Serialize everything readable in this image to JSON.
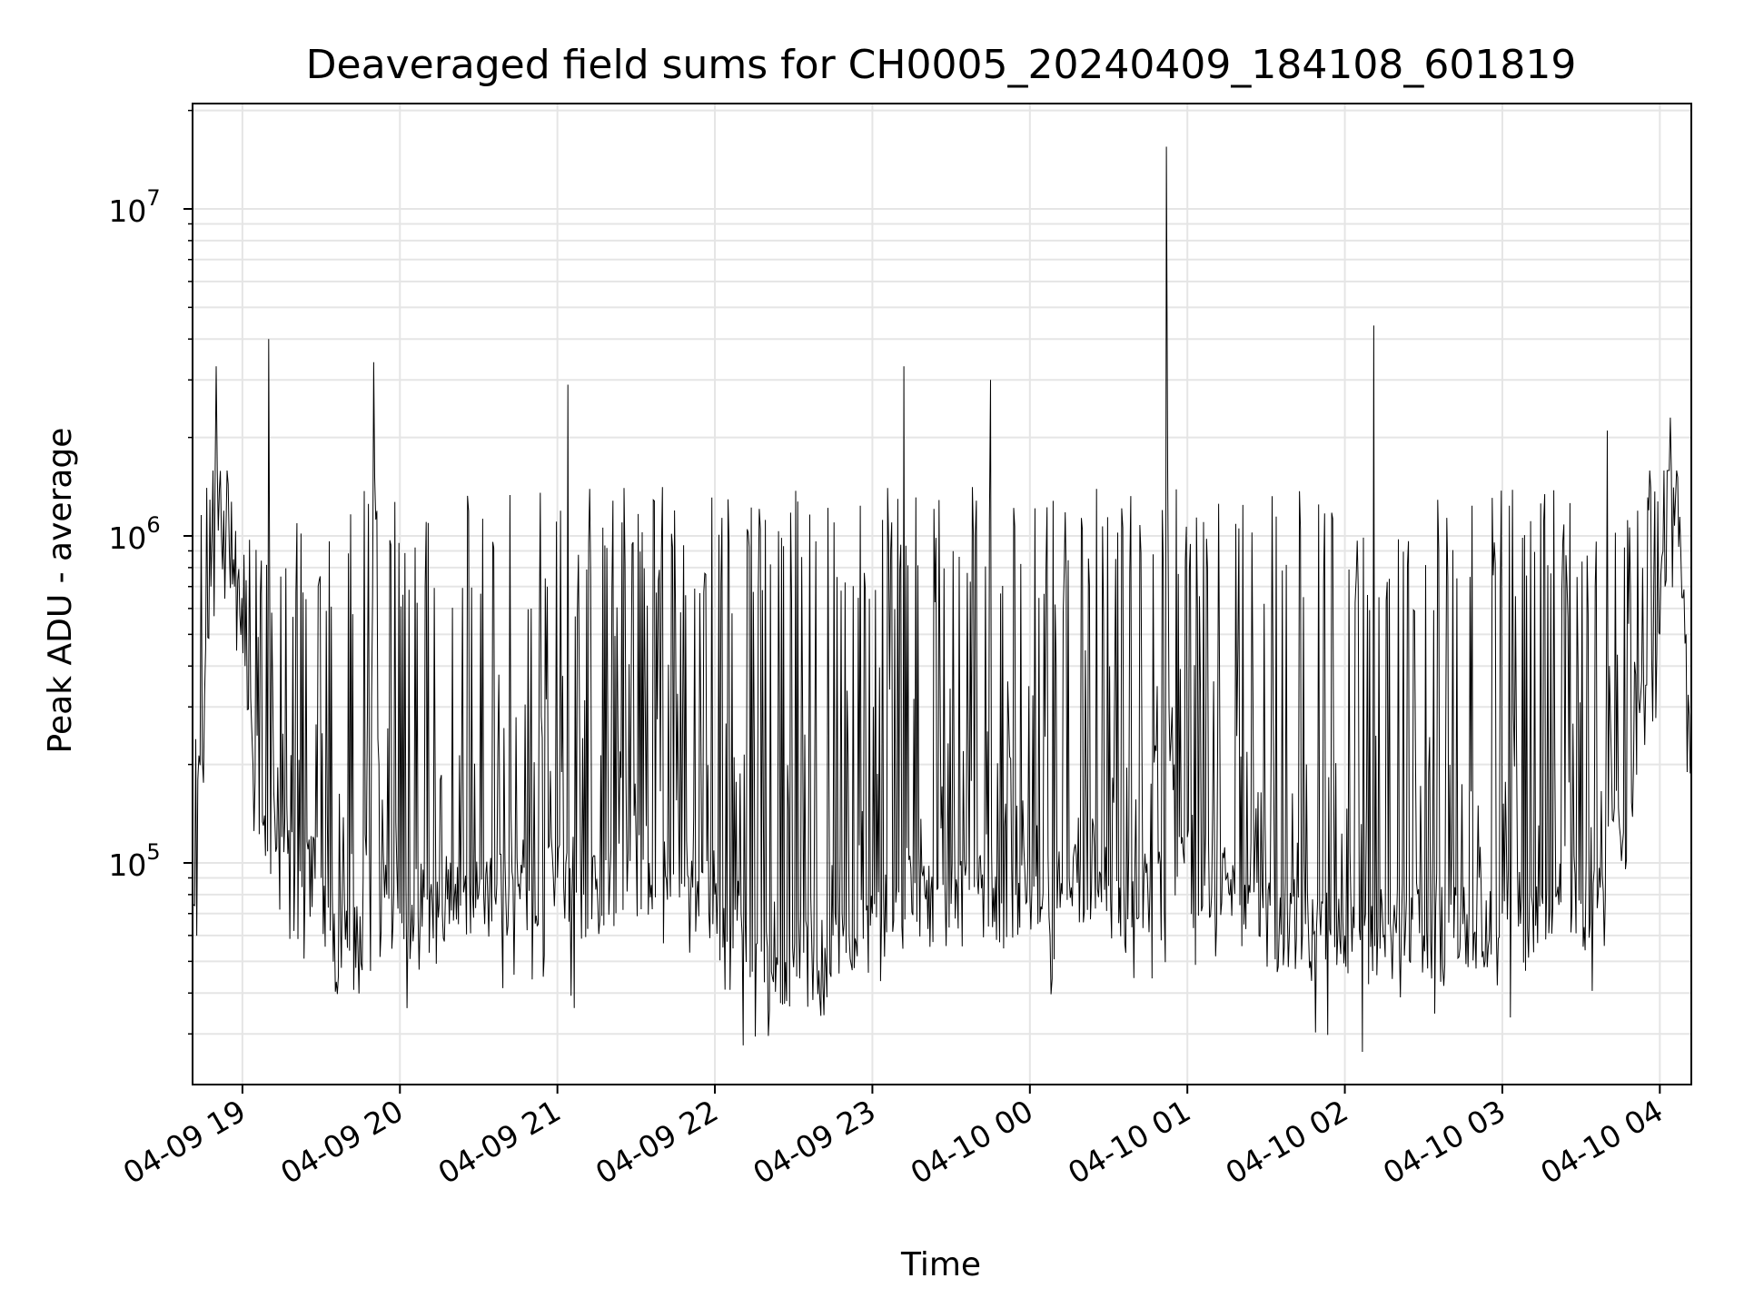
{
  "chart_data": {
    "type": "line",
    "title": "Deaveraged field sums for CH0005_20240409_184108_601819",
    "xlabel": "Time",
    "ylabel": "Peak ADU - average",
    "yscale": "log",
    "ylim": [
      21000,
      21000000
    ],
    "xlim": [
      "2024-04-09 18:41",
      "2024-04-10 04:12"
    ],
    "grid": true,
    "grid_color": "#e5e5e5",
    "line_color": "#000000",
    "x_tick_labels": [
      "04-09 19",
      "04-09 20",
      "04-09 21",
      "04-09 22",
      "04-09 23",
      "04-10 00",
      "04-10 01",
      "04-10 02",
      "04-10 03",
      "04-10 04"
    ],
    "x_ticks": [
      "2024-04-09 19:00",
      "2024-04-09 20:00",
      "2024-04-09 21:00",
      "2024-04-09 22:00",
      "2024-04-09 23:00",
      "2024-04-10 00:00",
      "2024-04-10 01:00",
      "2024-04-10 02:00",
      "2024-04-10 03:00",
      "2024-04-10 04:00"
    ],
    "y_tick_labels": [
      {
        "base": "10",
        "exp": "5"
      },
      {
        "base": "10",
        "exp": "6"
      },
      {
        "base": "10",
        "exp": "7"
      }
    ],
    "y_ticks": [
      100000,
      1000000,
      10000000
    ],
    "series": [
      {
        "x": [
          "2024-04-09 18:41",
          "2024-04-09 18:43",
          "2024-04-09 18:46",
          "2024-04-09 18:48",
          "2024-04-09 18:50",
          "2024-04-09 18:52",
          "2024-04-09 18:55",
          "2024-04-09 18:57",
          "2024-04-09 19:01",
          "2024-04-09 19:04",
          "2024-04-09 19:08",
          "2024-04-09 19:10",
          "2024-04-09 19:15",
          "2024-04-09 19:20",
          "2024-04-09 19:25",
          "2024-04-09 19:30",
          "2024-04-09 19:35",
          "2024-04-09 19:40",
          "2024-04-09 19:46",
          "2024-04-09 19:50",
          "2024-04-09 19:52",
          "2024-04-09 19:55",
          "2024-04-09 20:00",
          "2024-04-09 20:15",
          "2024-04-09 20:30",
          "2024-04-09 20:45",
          "2024-04-09 21:00",
          "2024-04-09 21:04",
          "2024-04-09 21:10",
          "2024-04-09 21:20",
          "2024-04-09 21:35",
          "2024-04-09 21:50",
          "2024-04-09 22:00",
          "2024-04-09 22:10",
          "2024-04-09 22:20",
          "2024-04-09 22:30",
          "2024-04-09 22:45",
          "2024-04-09 23:00",
          "2024-04-09 23:12",
          "2024-04-09 23:20",
          "2024-04-09 23:30",
          "2024-04-09 23:40",
          "2024-04-09 23:45",
          "2024-04-10 00:00",
          "2024-04-10 00:15",
          "2024-04-10 00:30",
          "2024-04-10 00:45",
          "2024-04-10 00:52",
          "2024-04-10 00:53",
          "2024-04-10 00:55",
          "2024-04-10 01:00",
          "2024-04-10 01:15",
          "2024-04-10 01:30",
          "2024-04-10 01:45",
          "2024-04-10 02:00",
          "2024-04-10 02:11",
          "2024-04-10 02:15",
          "2024-04-10 02:30",
          "2024-04-10 02:45",
          "2024-04-10 03:00",
          "2024-04-10 03:15",
          "2024-04-10 03:30",
          "2024-04-10 03:40",
          "2024-04-10 03:45",
          "2024-04-10 03:50",
          "2024-04-10 03:55",
          "2024-04-10 04:00",
          "2024-04-10 04:04",
          "2024-04-10 04:08",
          "2024-04-10 04:10",
          "2024-04-10 04:12"
        ],
        "y": [
          75000,
          180000,
          450000,
          700000,
          3300000,
          1000000,
          900000,
          700000,
          400000,
          200000,
          130000,
          4000000,
          120000,
          100000,
          110000,
          90000,
          70000,
          55000,
          90000,
          3400000,
          200000,
          80000,
          70000,
          75000,
          80000,
          85000,
          90000,
          2900000,
          80000,
          90000,
          100000,
          90000,
          80000,
          70000,
          55000,
          48000,
          60000,
          70000,
          3300000,
          80000,
          75000,
          90000,
          3000000,
          80000,
          90000,
          85000,
          80000,
          15500000,
          300000,
          200000,
          120000,
          90000,
          75000,
          65000,
          60000,
          4400000,
          60000,
          60000,
          65000,
          70000,
          80000,
          75000,
          2100000,
          120000,
          200000,
          350000,
          500000,
          2300000,
          900000,
          500000,
          200000
        ]
      }
    ]
  }
}
